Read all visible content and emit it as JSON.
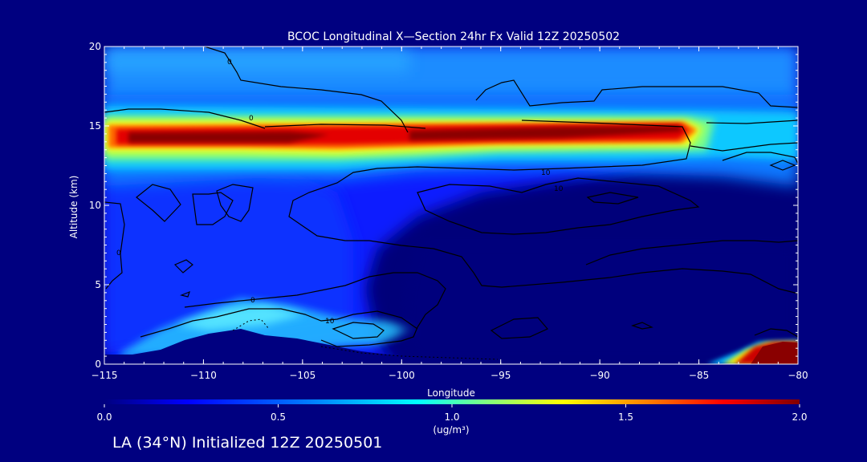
{
  "chart_data": {
    "type": "heatmap",
    "title": "BCOC Longitudinal X—Section 24hr  Fx Valid 12Z 20250502",
    "xlabel": "Longitude",
    "ylabel": "Altitude (km)",
    "xlim": [
      -115,
      -80
    ],
    "ylim": [
      0,
      20
    ],
    "x_ticks": [
      -115,
      -110,
      -105,
      -100,
      -95,
      -90,
      -85,
      -80
    ],
    "x_tick_labels": [
      "−115",
      "−110",
      "−105",
      "−100",
      "−95",
      "−90",
      "−85",
      "−80"
    ],
    "y_ticks": [
      0,
      5,
      10,
      15,
      20
    ],
    "y_tick_labels": [
      "0",
      "5",
      "10",
      "15",
      "20"
    ],
    "colorbar": {
      "min": 0.0,
      "max": 2.0,
      "ticks": [
        0.0,
        0.5,
        1.0,
        1.5,
        2.0
      ],
      "tick_labels": [
        "0.0",
        "0.5",
        "1.0",
        "1.5",
        "2.0"
      ],
      "units": "(ug/m³)",
      "colormap": [
        "#000080",
        "#0000ff",
        "#0080ff",
        "#00ffff",
        "#80ff80",
        "#ffff00",
        "#ff8000",
        "#ff0000",
        "#800000"
      ]
    },
    "contour_labels": [
      "0",
      "0",
      "0",
      "0",
      "10",
      "10",
      "10"
    ],
    "features": [
      {
        "name": "upper-plume",
        "lon_range": [
          -114,
          -86
        ],
        "alt_center": 14.3,
        "peak_value": 2.0
      },
      {
        "name": "surface-plume",
        "lon_range": [
          -84,
          -80
        ],
        "alt_range": [
          0,
          1.4
        ],
        "peak_value": 2.0
      },
      {
        "name": "terrain",
        "lon_peak": -108,
        "alt_peak": 2.1
      }
    ],
    "grid": false,
    "legend": "colorbar-bottom"
  },
  "footer": "LA (34°N) Initialized 12Z 20250501"
}
